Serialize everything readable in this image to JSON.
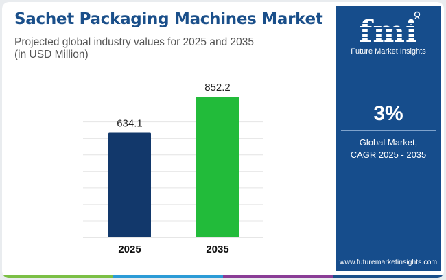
{
  "header": {
    "title": "Sachet Packaging Machines Market",
    "subtitle_line1": "Projected global industry values for 2025 and 2035",
    "subtitle_line2": "(in USD Million)"
  },
  "chart_data": {
    "type": "bar",
    "categories": [
      "2025",
      "2035"
    ],
    "values": [
      634.1,
      852.2
    ],
    "value_labels": [
      "634.1",
      "852.2"
    ],
    "colors": [
      "#12386b",
      "#22bb3a"
    ],
    "grid": true
  },
  "sidebar": {
    "logo_text": "Future Market Insights",
    "cagr_value": "3%",
    "cagr_label_line1": "Global Market,",
    "cagr_label_line2": "CAGR 2025 - 2035",
    "website": "www.futuremarketinsights.com",
    "background_color": "#164d8c"
  },
  "bottom_bar_colors": [
    "#7bbf45",
    "#2c9bd6",
    "#8a3d96",
    "#1a4f8a"
  ]
}
